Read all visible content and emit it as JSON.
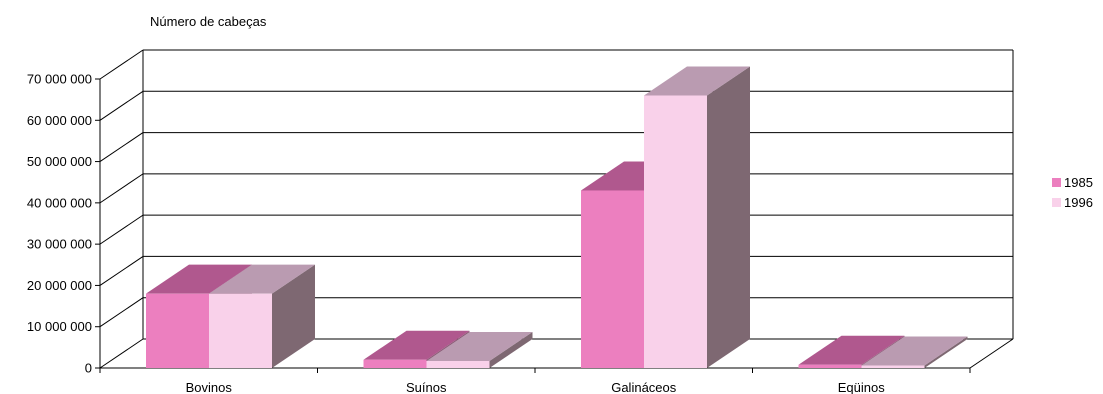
{
  "chart_data": {
    "type": "bar",
    "style": "3d-clustered",
    "ylabel": "Número de cabeças",
    "categories": [
      "Bovinos",
      "Suínos",
      "Galináceos",
      "Eqüinos"
    ],
    "series": [
      {
        "name": "1985",
        "values": [
          18000000,
          2000000,
          43000000,
          800000
        ],
        "colors": {
          "front": "#ec7fbf",
          "top": "#b0588e",
          "side": "#8a5a75"
        }
      },
      {
        "name": "1996",
        "values": [
          18000000,
          1700000,
          66000000,
          600000
        ],
        "colors": {
          "front": "#f9d1ea",
          "top": "#ba9bb1",
          "side": "#7e6872"
        }
      }
    ],
    "ylim": [
      0,
      70000000
    ],
    "yticks": [
      0,
      10000000,
      20000000,
      30000000,
      40000000,
      50000000,
      60000000,
      70000000
    ],
    "ytick_labels": [
      "0",
      "10 000 000",
      "20 000 000",
      "30 000 000",
      "40 000 000",
      "50 000 000",
      "60 000 000",
      "70 000 000"
    ],
    "grid": true,
    "legend": "right"
  }
}
